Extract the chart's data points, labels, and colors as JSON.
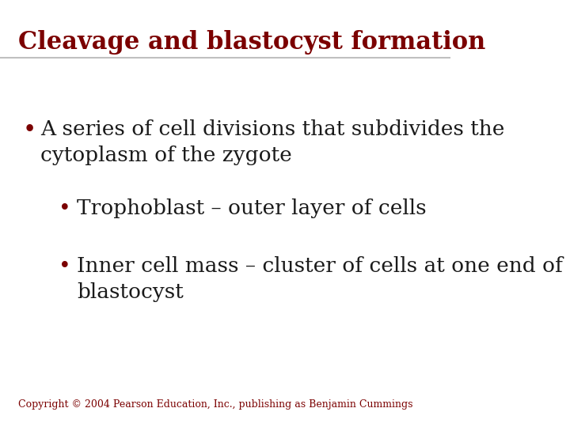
{
  "title": "Cleavage and blastocyst formation",
  "title_color": "#7B0000",
  "title_fontsize": 22,
  "background_color": "#FFFFFF",
  "separator_color": "#C0C0C0",
  "bullet_color": "#7B0000",
  "text_color": "#1A1A1A",
  "copyright": "Copyright © 2004 Pearson Education, Inc., publishing as Benjamin Cummings",
  "bullet1": "A series of cell divisions that subdivides the\ncytoplasm of the zygote",
  "sub_bullet1": "Trophoblast – outer layer of cells",
  "sub_bullet2": "Inner cell mass – cluster of cells at one end of\nblastocyst",
  "main_font_size": 19,
  "sub_font_size": 19,
  "copyright_fontsize": 9
}
